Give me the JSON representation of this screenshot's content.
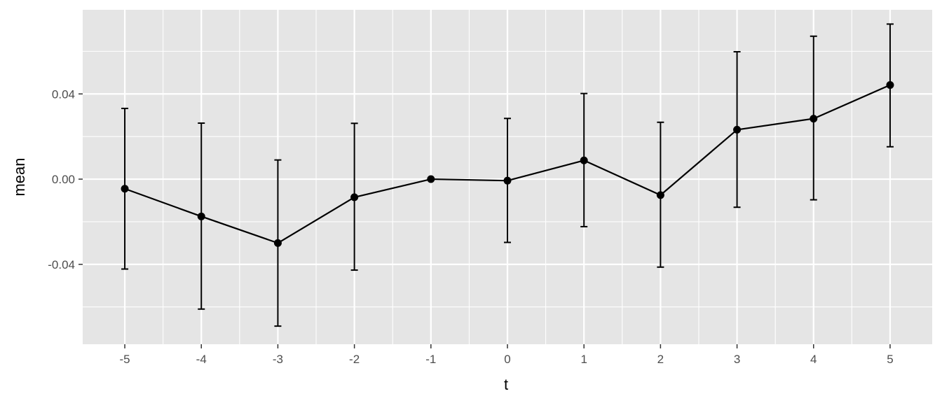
{
  "chart_data": {
    "type": "line",
    "title": "",
    "xlabel": "t",
    "ylabel": "mean",
    "xlim": [
      -5.55,
      5.55
    ],
    "ylim": [
      -0.0775,
      0.0795
    ],
    "x_ticks": [
      -5,
      -4,
      -3,
      -2,
      -1,
      0,
      1,
      2,
      3,
      4,
      5
    ],
    "x_tick_labels": [
      "-5",
      "-4",
      "-3",
      "-2",
      "-1",
      "0",
      "1",
      "2",
      "3",
      "4",
      "5"
    ],
    "y_ticks": [
      0.04,
      0.0,
      -0.04
    ],
    "y_tick_labels": [
      "0.04",
      "0.00",
      "-0.04"
    ],
    "y_minor_ticks": [
      0.06,
      0.02,
      -0.02,
      -0.06
    ],
    "grid": true,
    "legend": "none",
    "series": [
      {
        "x": [
          -5,
          -4,
          -3,
          -2,
          -1,
          0,
          1,
          2,
          3,
          4,
          5
        ],
        "y": [
          -0.0045,
          -0.0175,
          -0.03,
          -0.0085,
          0.0,
          -0.0007,
          0.0088,
          -0.0075,
          0.0232,
          0.0284,
          0.0442
        ],
        "ymin": [
          -0.0422,
          -0.061,
          -0.069,
          -0.0427,
          0.0,
          -0.0297,
          -0.0223,
          -0.0413,
          -0.0132,
          -0.0097,
          0.0152
        ],
        "ymax": [
          0.0332,
          0.0263,
          0.009,
          0.0262,
          0.0,
          0.0285,
          0.0402,
          0.0267,
          0.0598,
          0.0671,
          0.0728
        ]
      }
    ],
    "colors": {
      "panel_background": "#e5e5e5",
      "grid": "#ffffff",
      "line": "#000000",
      "text": "#4d4d4d"
    }
  }
}
